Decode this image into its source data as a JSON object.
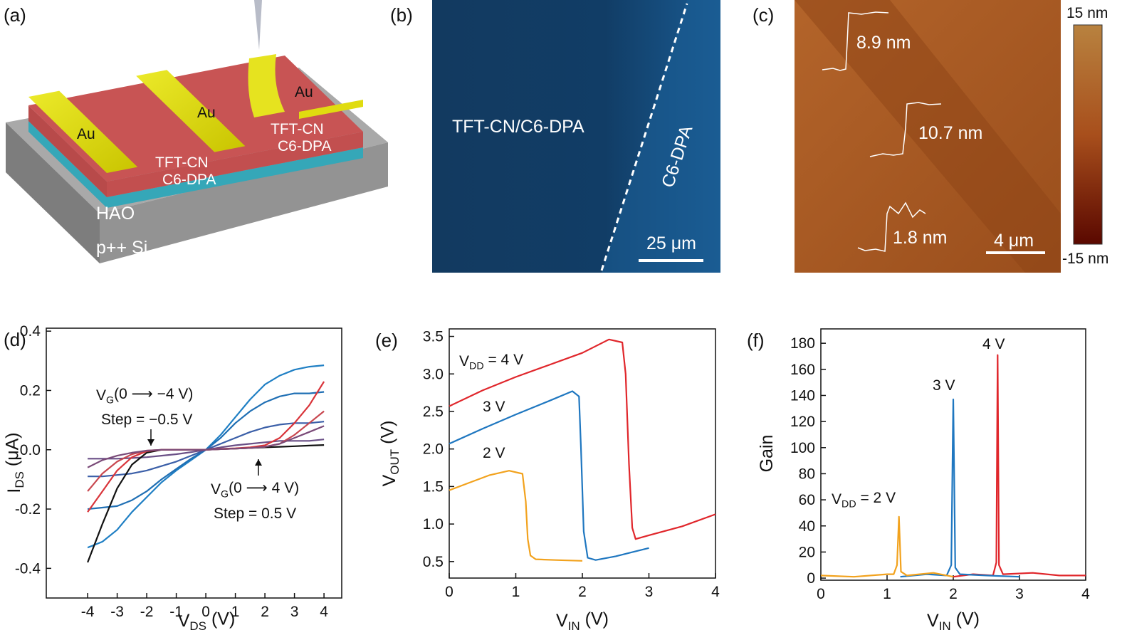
{
  "figure_a": {
    "label": "(a)",
    "electrodes": [
      "Au",
      "Au",
      "Au"
    ],
    "layers": [
      "TFT-CN",
      "C6-DPA",
      "TFT-CN",
      "C6-DPA"
    ],
    "substrate": [
      "HAO",
      "p++ Si"
    ]
  },
  "figure_b": {
    "label": "(b)",
    "region_left": "TFT-CN/C6-DPA",
    "region_right": "C6-DPA",
    "scale_bar": "25 μm"
  },
  "figure_c": {
    "label": "(c)",
    "step_heights": [
      "8.9 nm",
      "10.7 nm",
      "1.8 nm"
    ],
    "scale_bar": "4 μm",
    "colorbar_max": "15 nm",
    "colorbar_min": "-15 nm"
  },
  "chart_data": [
    {
      "type": "line",
      "panel_label": "(d)",
      "xlabel": {
        "parts": [
          "V",
          "DS",
          " (V)"
        ],
        "sub": [
          1
        ]
      },
      "ylabel": {
        "parts": [
          "I",
          "DS",
          " (μA)"
        ],
        "sub": [
          1
        ]
      },
      "xlim": [
        -5.4,
        4.6
      ],
      "ylim": [
        -0.5,
        0.41
      ],
      "xticks": [
        -4,
        -3,
        -2,
        -1,
        0,
        1,
        2,
        3,
        4
      ],
      "yticks": [
        -0.4,
        -0.2,
        {
          "value": 0,
          "label": "0.0"
        },
        0.2,
        0.4
      ],
      "annotations": [
        {
          "parts": [
            "V",
            "G",
            "(0 ⟶ −4 V)"
          ],
          "sub": [
            1
          ]
        },
        {
          "parts": [
            "Step = −0.5 V"
          ],
          "sub": []
        },
        {
          "parts": [
            "V",
            "G",
            "(0 ⟶ 4 V)"
          ],
          "sub": [
            1
          ]
        },
        {
          "parts": [
            "Step = 0.5 V"
          ],
          "sub": []
        }
      ],
      "x": [
        -4,
        -3.5,
        -3,
        -2.5,
        -2,
        -1.5,
        -1,
        -0.5,
        0,
        0.5,
        1,
        1.5,
        2,
        2.5,
        3,
        3.5,
        4
      ],
      "series": [
        {
          "color": "#1f7fc4",
          "values": [
            -0.33,
            -0.31,
            -0.27,
            -0.21,
            -0.16,
            -0.11,
            -0.07,
            -0.035,
            0,
            0.05,
            0.11,
            0.17,
            0.22,
            0.25,
            0.27,
            0.28,
            0.285
          ]
        },
        {
          "color": "#1f6fb4",
          "values": [
            -0.2,
            -0.195,
            -0.19,
            -0.17,
            -0.14,
            -0.1,
            -0.065,
            -0.03,
            0,
            0.04,
            0.09,
            0.13,
            0.16,
            0.18,
            0.19,
            0.19,
            0.195
          ]
        },
        {
          "color": "#3b5fa8",
          "values": [
            -0.09,
            -0.09,
            -0.085,
            -0.08,
            -0.07,
            -0.055,
            -0.04,
            -0.02,
            0,
            0.02,
            0.04,
            0.06,
            0.075,
            0.085,
            0.09,
            0.09,
            0.095
          ]
        },
        {
          "color": "#6a4f86",
          "values": [
            -0.03,
            -0.03,
            -0.03,
            -0.028,
            -0.025,
            -0.02,
            -0.015,
            -0.008,
            0,
            0.008,
            0.015,
            0.02,
            0.025,
            0.03,
            0.03,
            0.03,
            0.035
          ]
        },
        {
          "color": "#111111",
          "values": [
            -0.38,
            -0.25,
            -0.13,
            -0.05,
            -0.01,
            0,
            0,
            0,
            0,
            0.002,
            0.004,
            0.006,
            0.008,
            0.01,
            0.012,
            0.014,
            0.016
          ]
        },
        {
          "color": "#d9343a",
          "values": [
            -0.21,
            -0.14,
            -0.07,
            -0.025,
            -0.005,
            0,
            0,
            0,
            0,
            0.003,
            0.005,
            0.008,
            0.015,
            0.04,
            0.09,
            0.15,
            0.23
          ]
        },
        {
          "color": "#c8474f",
          "values": [
            -0.14,
            -0.08,
            -0.04,
            -0.015,
            -0.003,
            0,
            0,
            0,
            0,
            0.002,
            0.004,
            0.006,
            0.01,
            0.02,
            0.05,
            0.09,
            0.13
          ]
        },
        {
          "color": "#7a4a78",
          "values": [
            -0.06,
            -0.035,
            -0.02,
            -0.01,
            -0.003,
            0,
            0,
            0,
            0,
            0.002,
            0.004,
            0.006,
            0.01,
            0.02,
            0.04,
            0.06,
            0.08
          ]
        }
      ]
    },
    {
      "type": "line",
      "panel_label": "(e)",
      "xlabel": {
        "parts": [
          "V",
          "IN",
          " (V)"
        ],
        "sub": [
          1
        ]
      },
      "ylabel": {
        "parts": [
          "V",
          "OUT",
          " (V)"
        ],
        "sub": [
          1
        ]
      },
      "xlim": [
        0,
        4
      ],
      "ylim": [
        0.28,
        3.6
      ],
      "xticks": [
        0,
        1,
        2,
        3,
        4
      ],
      "yticks": [
        0.5,
        {
          "value": 1,
          "label": "1.0"
        },
        1.5,
        {
          "value": 2,
          "label": "2.0"
        },
        2.5,
        {
          "value": 3,
          "label": "3.0"
        },
        3.5
      ],
      "annotations": [
        {
          "parts": [
            "V",
            "DD",
            " = 4 V"
          ],
          "sub": [
            1
          ]
        },
        {
          "parts": [
            "3 V"
          ],
          "sub": []
        },
        {
          "parts": [
            "2 V"
          ],
          "sub": []
        }
      ],
      "series": [
        {
          "color": "#e0262b",
          "x": [
            0,
            0.5,
            1,
            1.5,
            2,
            2.4,
            2.6,
            2.65,
            2.7,
            2.75,
            2.8,
            3,
            3.5,
            4
          ],
          "values": [
            2.57,
            2.78,
            2.96,
            3.12,
            3.28,
            3.46,
            3.42,
            3.0,
            1.8,
            0.95,
            0.8,
            0.85,
            0.97,
            1.13
          ]
        },
        {
          "color": "#1f77c0",
          "x": [
            0,
            0.5,
            1,
            1.5,
            1.85,
            1.95,
            1.98,
            2.02,
            2.08,
            2.2,
            2.5,
            3
          ],
          "values": [
            2.07,
            2.27,
            2.46,
            2.64,
            2.77,
            2.7,
            2.0,
            0.9,
            0.55,
            0.52,
            0.57,
            0.68
          ]
        },
        {
          "color": "#f2a21d",
          "x": [
            0,
            0.3,
            0.6,
            0.9,
            1.1,
            1.15,
            1.18,
            1.22,
            1.3,
            1.6,
            2.0
          ],
          "values": [
            1.45,
            1.55,
            1.65,
            1.71,
            1.67,
            1.3,
            0.8,
            0.58,
            0.53,
            0.52,
            0.51
          ]
        }
      ]
    },
    {
      "type": "line",
      "panel_label": "(f)",
      "xlabel": {
        "parts": [
          "V",
          "IN",
          " (V)"
        ],
        "sub": [
          1
        ]
      },
      "ylabel": {
        "parts": [
          "Gain"
        ],
        "sub": []
      },
      "xlim": [
        0,
        4
      ],
      "ylim": [
        -1.6,
        191
      ],
      "xticks": [
        0,
        1,
        2,
        3,
        4
      ],
      "yticks": [
        0,
        20,
        40,
        60,
        80,
        100,
        120,
        140,
        160,
        180
      ],
      "annotations": [
        {
          "parts": [
            "V",
            "DD",
            " = 2 V"
          ],
          "sub": [
            1
          ]
        },
        {
          "parts": [
            "3 V"
          ],
          "sub": []
        },
        {
          "parts": [
            "4 V"
          ],
          "sub": []
        }
      ],
      "series": [
        {
          "color": "#e0262b",
          "x": [
            2.0,
            2.3,
            2.6,
            2.65,
            2.67,
            2.69,
            2.75,
            3.2,
            3.6,
            4.0
          ],
          "values": [
            1,
            3,
            2,
            12,
            171,
            10,
            3,
            4,
            2,
            2
          ]
        },
        {
          "color": "#1f77c0",
          "x": [
            1.2,
            1.6,
            1.9,
            1.97,
            2.0,
            2.03,
            2.1,
            2.5,
            3.0
          ],
          "values": [
            1,
            3,
            2,
            10,
            137,
            8,
            3,
            2,
            1
          ]
        },
        {
          "color": "#f2a21d",
          "x": [
            0,
            0.5,
            1.0,
            1.1,
            1.15,
            1.18,
            1.21,
            1.3,
            1.7,
            2.0
          ],
          "values": [
            2,
            1,
            3,
            3,
            10,
            47,
            5,
            2,
            4,
            1
          ]
        }
      ]
    }
  ]
}
